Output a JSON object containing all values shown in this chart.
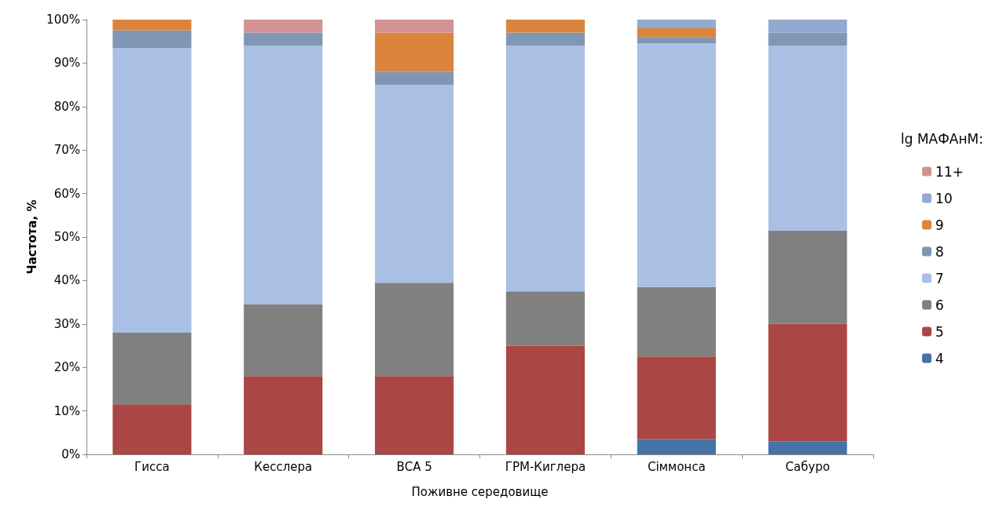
{
  "chart_data": {
    "type": "bar",
    "stacked": true,
    "xlabel": "Поживне середовище",
    "ylabel": "Частота, %",
    "legend_title": "lg МАФАнМ:",
    "legend": "right",
    "grid": false,
    "categories": [
      "Гисса",
      "Кесслера",
      "ВСА 5",
      "ГРМ-Киглера",
      "Сіммонса",
      "Сабуро"
    ],
    "ylim": [
      0,
      100
    ],
    "yticks": [
      {
        "value": 0,
        "label": "0%"
      },
      {
        "value": 10,
        "label": "10%"
      },
      {
        "value": 20,
        "label": "20%"
      },
      {
        "value": 30,
        "label": "30%"
      },
      {
        "value": 40,
        "label": "40%"
      },
      {
        "value": 50,
        "label": "50%"
      },
      {
        "value": 60,
        "label": "60%"
      },
      {
        "value": 70,
        "label": "70%"
      },
      {
        "value": 80,
        "label": "80%"
      },
      {
        "value": 90,
        "label": "90%"
      },
      {
        "value": 100,
        "label": "100%"
      }
    ],
    "series": [
      {
        "name": "4",
        "color": "#4572a7",
        "values": [
          0,
          0,
          0,
          0,
          3.5,
          3
        ]
      },
      {
        "name": "5",
        "color": "#aa4643",
        "values": [
          11.5,
          18,
          18,
          25,
          19,
          27
        ]
      },
      {
        "name": "6",
        "color": "#808080",
        "values": [
          16.5,
          16.5,
          21.5,
          12.5,
          16,
          21.5
        ]
      },
      {
        "name": "7",
        "color": "#a9bfe4",
        "values": [
          65.5,
          59.5,
          45.5,
          56.5,
          56,
          42.5
        ]
      },
      {
        "name": "8",
        "color": "#7f97b4",
        "values": [
          4,
          3,
          3,
          3,
          1.5,
          3
        ]
      },
      {
        "name": "9",
        "color": "#db843d",
        "values": [
          2.5,
          0,
          9,
          3,
          2,
          0
        ]
      },
      {
        "name": "10",
        "color": "#93a9cf",
        "values": [
          0,
          0,
          0,
          0,
          2,
          3
        ]
      },
      {
        "name": "11+",
        "color": "#d19392",
        "values": [
          0,
          3,
          3,
          0,
          0,
          0
        ]
      }
    ]
  }
}
